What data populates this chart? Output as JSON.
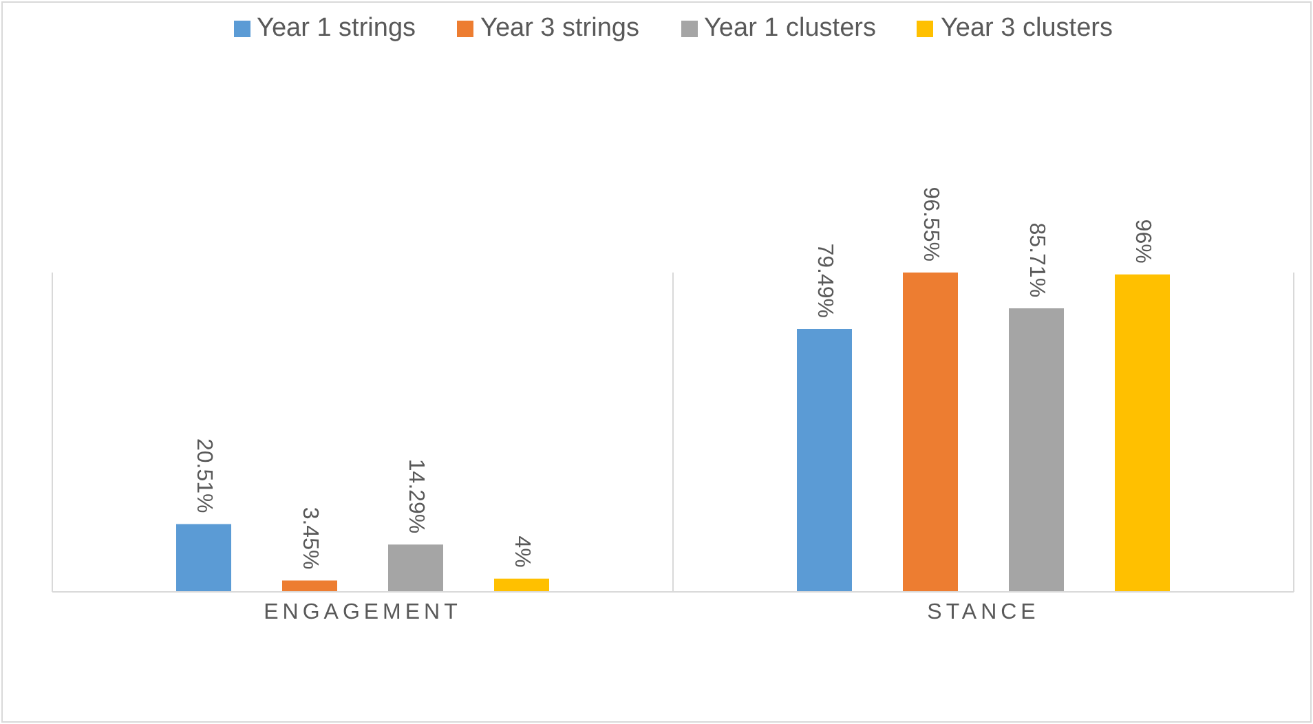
{
  "chart_data": {
    "type": "bar",
    "categories": [
      "ENGAGEMENT",
      "STANCE"
    ],
    "legend": "top",
    "grid": "x",
    "series": [
      {
        "name": "Year 1 strings",
        "color": "#5b9bd5",
        "values": [
          20.51,
          79.49
        ],
        "value_labels": [
          "20.51%",
          "79.49%"
        ]
      },
      {
        "name": "Year 3 strings",
        "color": "#ed7d31",
        "values": [
          3.45,
          96.55
        ],
        "value_labels": [
          "3.45%",
          "96.55%"
        ]
      },
      {
        "name": "Year 1 clusters",
        "color": "#a5a5a5",
        "values": [
          14.29,
          85.71
        ],
        "value_labels": [
          "14.29%",
          "85.71%"
        ]
      },
      {
        "name": "Year 3 clusters",
        "color": "#ffc000",
        "values": [
          4,
          96
        ],
        "value_labels": [
          "4%",
          "96%"
        ]
      }
    ]
  }
}
